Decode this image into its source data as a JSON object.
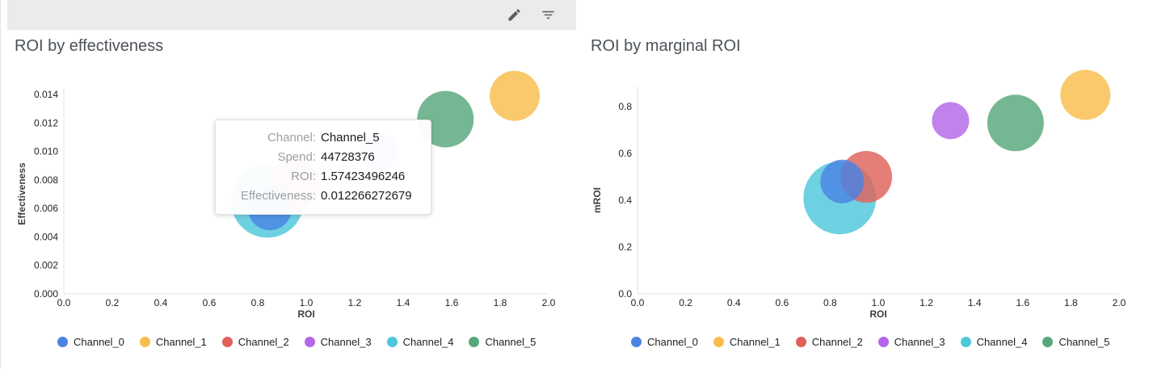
{
  "toolbar": {
    "edit_icon": "edit-pencil",
    "filter_icon": "filter-list"
  },
  "charts": [
    {
      "title": "ROI by effectiveness",
      "xlabel": "ROI",
      "ylabel": "Effectiveness"
    },
    {
      "title": "ROI by marginal ROI",
      "xlabel": "ROI",
      "ylabel": "mROI"
    }
  ],
  "tooltip": {
    "rows": [
      {
        "label": "Channel:",
        "value": "Channel_5"
      },
      {
        "label": "Spend:",
        "value": "44728376"
      },
      {
        "label": "ROI:",
        "value": "1.57423496246"
      },
      {
        "label": "Effectiveness:",
        "value": "0.012266272679"
      }
    ]
  },
  "legend": {
    "items": [
      {
        "label": "Channel_0",
        "color": "#4984E4"
      },
      {
        "label": "Channel_1",
        "color": "#F9BD4B"
      },
      {
        "label": "Channel_2",
        "color": "#E0615A"
      },
      {
        "label": "Channel_3",
        "color": "#B466E8"
      },
      {
        "label": "Channel_4",
        "color": "#4EC7DA"
      },
      {
        "label": "Channel_5",
        "color": "#58A77B"
      }
    ]
  },
  "chart_data": [
    {
      "type": "scatter",
      "title": "ROI by effectiveness",
      "xlabel": "ROI",
      "ylabel": "Effectiveness",
      "xlim": [
        0,
        2
      ],
      "ylim": [
        0,
        0.014
      ],
      "x_ticks": [
        "0.0",
        "0.2",
        "0.4",
        "0.6",
        "0.8",
        "1.0",
        "1.2",
        "1.4",
        "1.6",
        "1.8",
        "2.0"
      ],
      "y_ticks": [
        "0.000",
        "0.002",
        "0.004",
        "0.006",
        "0.008",
        "0.010",
        "0.012",
        "0.014"
      ],
      "grid": false,
      "legend_position": "bottom",
      "points": [
        {
          "name": "Channel_4",
          "x": 0.84,
          "y": 0.0065,
          "r": 45
        },
        {
          "name": "Channel_2",
          "x": 0.95,
          "y": 0.0077,
          "r": 32
        },
        {
          "name": "Channel_0",
          "x": 0.85,
          "y": 0.006,
          "r": 27
        },
        {
          "name": "Channel_3",
          "x": 1.3,
          "y": 0.01,
          "r": 23
        },
        {
          "name": "Channel_5",
          "x": 1.57423496246,
          "y": 0.012266272679,
          "r": 35,
          "spend": 44728376
        },
        {
          "name": "Channel_1",
          "x": 1.86,
          "y": 0.0139,
          "r": 31
        }
      ]
    },
    {
      "type": "scatter",
      "title": "ROI by marginal ROI",
      "xlabel": "ROI",
      "ylabel": "mROI",
      "xlim": [
        0,
        2
      ],
      "ylim": [
        0,
        0.8
      ],
      "x_ticks": [
        "0.0",
        "0.2",
        "0.4",
        "0.6",
        "0.8",
        "1.0",
        "1.2",
        "1.4",
        "1.6",
        "1.8",
        "2.0"
      ],
      "y_ticks": [
        "0.0",
        "0.2",
        "0.4",
        "0.6",
        "0.8"
      ],
      "grid": false,
      "legend_position": "bottom",
      "points": [
        {
          "name": "Channel_4",
          "x": 0.84,
          "y": 0.41,
          "r": 45
        },
        {
          "name": "Channel_2",
          "x": 0.95,
          "y": 0.5,
          "r": 32
        },
        {
          "name": "Channel_0",
          "x": 0.85,
          "y": 0.48,
          "r": 27
        },
        {
          "name": "Channel_3",
          "x": 1.3,
          "y": 0.74,
          "r": 23
        },
        {
          "name": "Channel_5",
          "x": 1.57,
          "y": 0.73,
          "r": 35
        },
        {
          "name": "Channel_1",
          "x": 1.86,
          "y": 0.85,
          "r": 31
        }
      ]
    }
  ]
}
